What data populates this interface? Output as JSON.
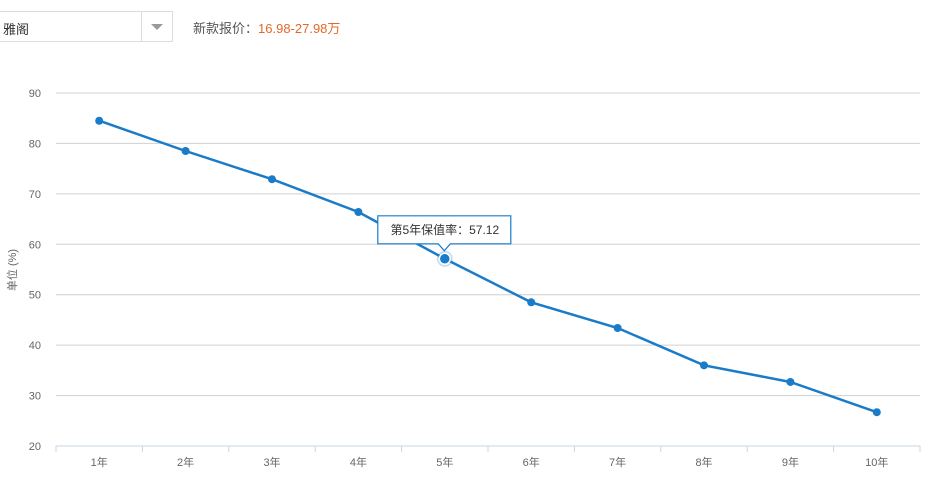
{
  "header": {
    "model_value": "雅阁",
    "price_label": "新款报价：",
    "price_value": "16.98-27.98万"
  },
  "colors": {
    "line": "#1a7bc9",
    "grid": "#d0d0d0",
    "price": "#e5682a"
  },
  "chart_data": {
    "type": "line",
    "title": "",
    "xlabel": "",
    "ylabel": "单位 (%)",
    "categories": [
      "1年",
      "2年",
      "3年",
      "4年",
      "5年",
      "6年",
      "7年",
      "8年",
      "9年",
      "10年"
    ],
    "series": [
      {
        "values": [
          84.5,
          78.5,
          72.9,
          66.4,
          57.12,
          48.5,
          43.4,
          36.0,
          32.7,
          26.7
        ]
      }
    ],
    "ylim": [
      20,
      90
    ],
    "yticks": [
      20,
      30,
      40,
      50,
      60,
      70,
      80,
      90
    ],
    "grid": true,
    "legend": "none",
    "tooltip": {
      "index": 4,
      "label": "第5年保值率：",
      "value": "57.12"
    }
  }
}
